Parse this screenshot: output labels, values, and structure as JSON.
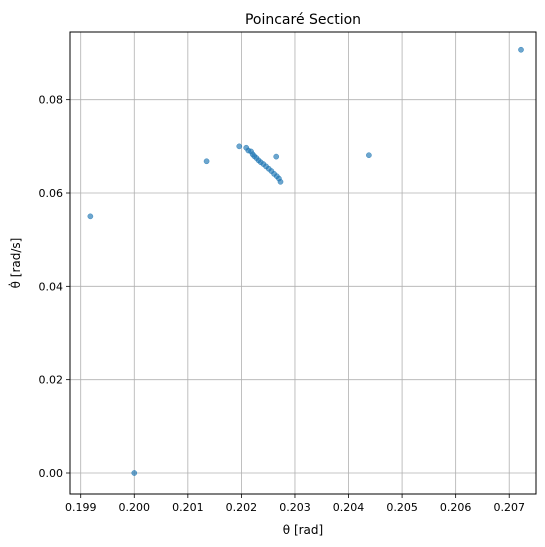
{
  "chart_data": {
    "type": "scatter",
    "title": "Poincaré Section",
    "xlabel": "θ [rad]",
    "ylabel": "θ̇ [rad/s]",
    "xlim": [
      0.1988,
      0.2075
    ],
    "ylim": [
      -0.0045,
      0.0945
    ],
    "xticks": [
      0.199,
      0.2,
      0.201,
      0.202,
      0.203,
      0.204,
      0.205,
      0.206,
      0.207
    ],
    "xtick_labels": [
      "0.199",
      "0.200",
      "0.201",
      "0.202",
      "0.203",
      "0.204",
      "0.205",
      "0.206",
      "0.207"
    ],
    "yticks": [
      0.0,
      0.02,
      0.04,
      0.06,
      0.08
    ],
    "ytick_labels": [
      "0.00",
      "0.02",
      "0.04",
      "0.06",
      "0.08"
    ],
    "grid": true,
    "marker_color": "#1f77b4",
    "x": [
      0.2,
      0.19918,
      0.20135,
      0.20196,
      0.20209,
      0.20213,
      0.20218,
      0.20221,
      0.20224,
      0.20228,
      0.20232,
      0.20236,
      0.20241,
      0.20246,
      0.20251,
      0.20256,
      0.20261,
      0.20266,
      0.2027,
      0.20273,
      0.20265,
      0.20438,
      0.20722
    ],
    "y": [
      0.0,
      0.055,
      0.0668,
      0.07,
      0.0697,
      0.0691,
      0.0689,
      0.0683,
      0.0679,
      0.0675,
      0.067,
      0.0666,
      0.0662,
      0.0657,
      0.0652,
      0.0647,
      0.0641,
      0.0636,
      0.0631,
      0.0624,
      0.0678,
      0.0681,
      0.0907
    ]
  }
}
